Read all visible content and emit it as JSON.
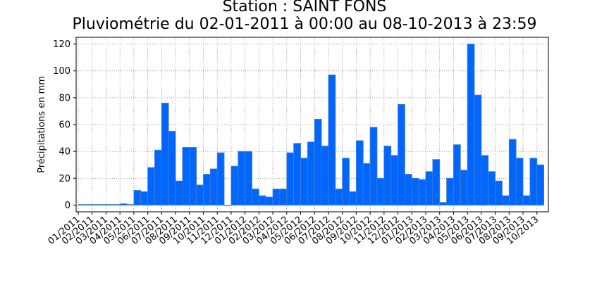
{
  "chart_data": {
    "type": "bar",
    "title": "Station : SAINT FONS",
    "subtitle": "Pluviométrie du 02-01-2011 à 00:00 au 08-10-2013 à 23:59",
    "xlabel": "",
    "ylabel": "Précipitations en mm",
    "ylim": [
      -5,
      125
    ],
    "yticks": [
      0,
      20,
      40,
      60,
      80,
      100,
      120
    ],
    "grid": true,
    "bar_color": "#0066ff",
    "bar_edge_color": "#4a7fbf",
    "bar_period": "half-month",
    "x_tick_labels": [
      "01/2011",
      "02/2011",
      "03/2011",
      "04/2011",
      "05/2011",
      "06/2011",
      "07/2011",
      "08/2011",
      "09/2011",
      "10/2011",
      "11/2011",
      "12/2011",
      "01/2012",
      "02/2012",
      "03/2012",
      "04/2012",
      "05/2012",
      "06/2012",
      "07/2012",
      "08/2012",
      "09/2012",
      "10/2012",
      "11/2012",
      "12/2012",
      "01/2013",
      "02/2013",
      "03/2013",
      "04/2013",
      "05/2013",
      "06/2013",
      "07/2013",
      "08/2013",
      "09/2013",
      "10/2013"
    ],
    "values": [
      0.5,
      0.5,
      0.5,
      0.5,
      0.5,
      0.5,
      1,
      0.5,
      11,
      10,
      28,
      41,
      76,
      55,
      18,
      43,
      43,
      15,
      23,
      27,
      39,
      0,
      29,
      40,
      40,
      12,
      7,
      6,
      12,
      12,
      39,
      46,
      35,
      47,
      64,
      44,
      97,
      12,
      35,
      10,
      48,
      31,
      58,
      20,
      44,
      37,
      75,
      23,
      20,
      19,
      25,
      34,
      2,
      20,
      45,
      26,
      120,
      82,
      37,
      25,
      18,
      7,
      49,
      35,
      7,
      35,
      30
    ]
  }
}
